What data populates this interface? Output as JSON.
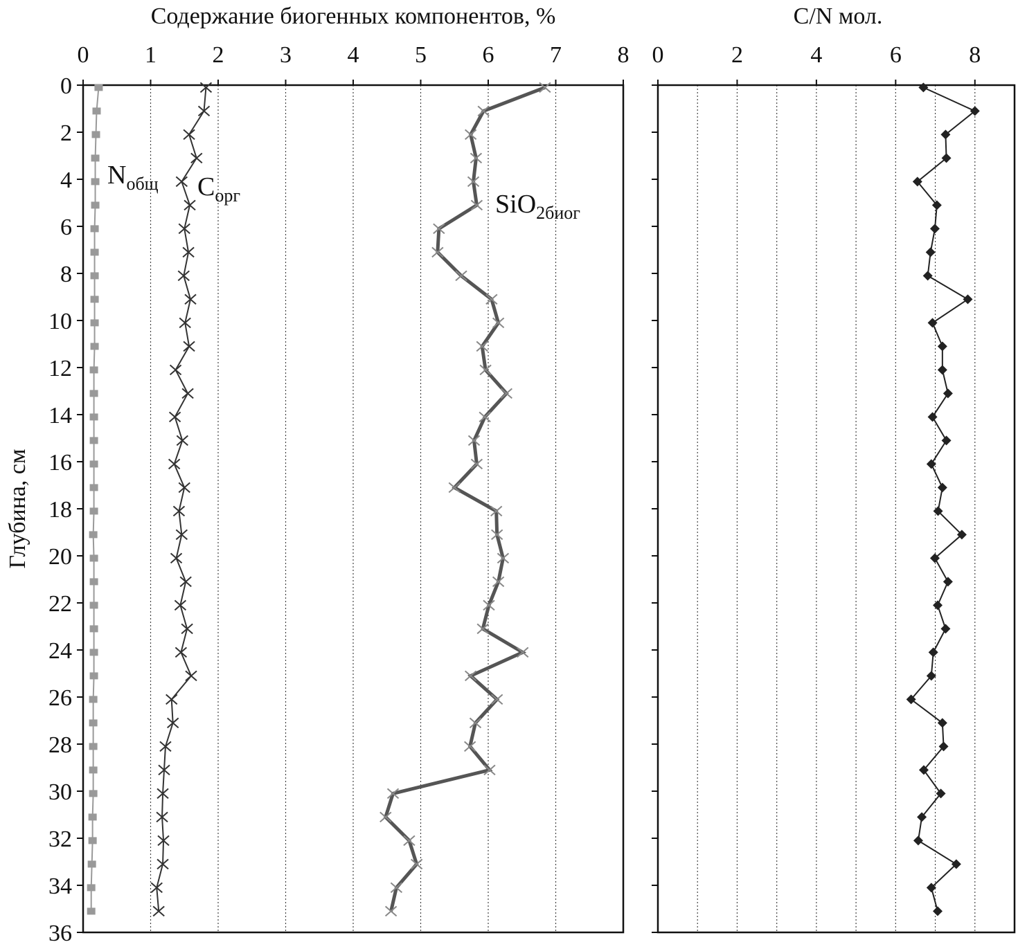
{
  "chart_data": [
    {
      "type": "line",
      "title": "Содержание биогенных компонентов, %",
      "y_label": "Глубина, см",
      "y": [
        0.1,
        1.1,
        2.1,
        3.1,
        4.1,
        5.1,
        6.1,
        7.1,
        8.1,
        9.1,
        10.1,
        11.1,
        12.1,
        13.1,
        14.1,
        15.1,
        16.1,
        17.1,
        18.1,
        19.1,
        20.1,
        21.1,
        22.1,
        23.1,
        24.1,
        25.1,
        26.1,
        27.1,
        28.1,
        29.1,
        30.1,
        31.1,
        32.1,
        33.1,
        34.1,
        35.1
      ],
      "ylim": [
        0,
        36
      ],
      "yticks": [
        0,
        2,
        4,
        6,
        8,
        10,
        12,
        14,
        16,
        18,
        20,
        22,
        24,
        26,
        28,
        30,
        32,
        34,
        36
      ],
      "y_inverted": true,
      "xlim": [
        0,
        8
      ],
      "xticks": [
        0,
        1,
        2,
        3,
        4,
        5,
        6,
        7,
        8
      ],
      "grid": true,
      "show_yticklabels": true,
      "series": [
        {
          "name": "N",
          "subscript": "общ",
          "color": "#999999",
          "marker": "square",
          "line_width": 2,
          "values": [
            0.23,
            0.2,
            0.19,
            0.18,
            0.18,
            0.18,
            0.17,
            0.17,
            0.17,
            0.17,
            0.17,
            0.17,
            0.16,
            0.16,
            0.16,
            0.16,
            0.16,
            0.16,
            0.16,
            0.15,
            0.16,
            0.16,
            0.16,
            0.16,
            0.16,
            0.16,
            0.15,
            0.15,
            0.15,
            0.15,
            0.15,
            0.14,
            0.14,
            0.13,
            0.12,
            0.12
          ]
        },
        {
          "name": "C",
          "subscript": "орг",
          "color": "#333333",
          "marker": "x",
          "line_width": 2,
          "values": [
            1.82,
            1.79,
            1.57,
            1.68,
            1.46,
            1.58,
            1.5,
            1.56,
            1.49,
            1.59,
            1.51,
            1.57,
            1.37,
            1.55,
            1.36,
            1.47,
            1.35,
            1.5,
            1.42,
            1.46,
            1.38,
            1.52,
            1.44,
            1.54,
            1.45,
            1.6,
            1.31,
            1.33,
            1.22,
            1.2,
            1.18,
            1.17,
            1.19,
            1.18,
            1.09,
            1.12
          ]
        },
        {
          "name": "SiO",
          "subscript": "2биог",
          "color": "#555555",
          "marker": "x",
          "line_width": 5,
          "values": [
            6.84,
            5.93,
            5.74,
            5.82,
            5.78,
            5.83,
            5.27,
            5.25,
            5.6,
            6.05,
            6.15,
            5.91,
            5.96,
            6.27,
            5.95,
            5.79,
            5.83,
            5.5,
            6.12,
            6.13,
            6.22,
            6.15,
            6.01,
            5.92,
            6.51,
            5.74,
            6.13,
            5.81,
            5.73,
            6.02,
            4.59,
            4.48,
            4.83,
            4.94,
            4.64,
            4.56
          ]
        }
      ]
    },
    {
      "type": "line",
      "title": "C/N мол.",
      "y": [
        0.1,
        1.1,
        2.1,
        3.1,
        4.1,
        5.1,
        6.1,
        7.1,
        8.1,
        9.1,
        10.1,
        11.1,
        12.1,
        13.1,
        14.1,
        15.1,
        16.1,
        17.1,
        18.1,
        19.1,
        20.1,
        21.1,
        22.1,
        23.1,
        24.1,
        25.1,
        26.1,
        27.1,
        28.1,
        29.1,
        30.1,
        31.1,
        32.1,
        33.1,
        34.1,
        35.1
      ],
      "ylim": [
        0,
        36
      ],
      "yticks": [
        0,
        2,
        4,
        6,
        8,
        10,
        12,
        14,
        16,
        18,
        20,
        22,
        24,
        26,
        28,
        30,
        32,
        34,
        36
      ],
      "y_inverted": true,
      "xlim": [
        0,
        9
      ],
      "xticks": [
        0,
        2,
        4,
        6,
        8
      ],
      "minor_xticks": [
        1,
        3,
        5,
        7
      ],
      "grid": true,
      "show_yticklabels": false,
      "series": [
        {
          "color": "#222222",
          "marker": "diamond",
          "line_width": 2,
          "values": [
            6.7,
            8.0,
            7.26,
            7.28,
            6.55,
            7.04,
            6.99,
            6.88,
            6.81,
            7.82,
            6.93,
            7.18,
            7.18,
            7.32,
            6.93,
            7.28,
            6.9,
            7.18,
            7.07,
            7.67,
            6.99,
            7.32,
            7.06,
            7.26,
            6.95,
            6.9,
            6.39,
            7.18,
            7.21,
            6.71,
            7.14,
            6.66,
            6.57,
            7.53,
            6.9,
            7.06
          ]
        }
      ]
    }
  ]
}
